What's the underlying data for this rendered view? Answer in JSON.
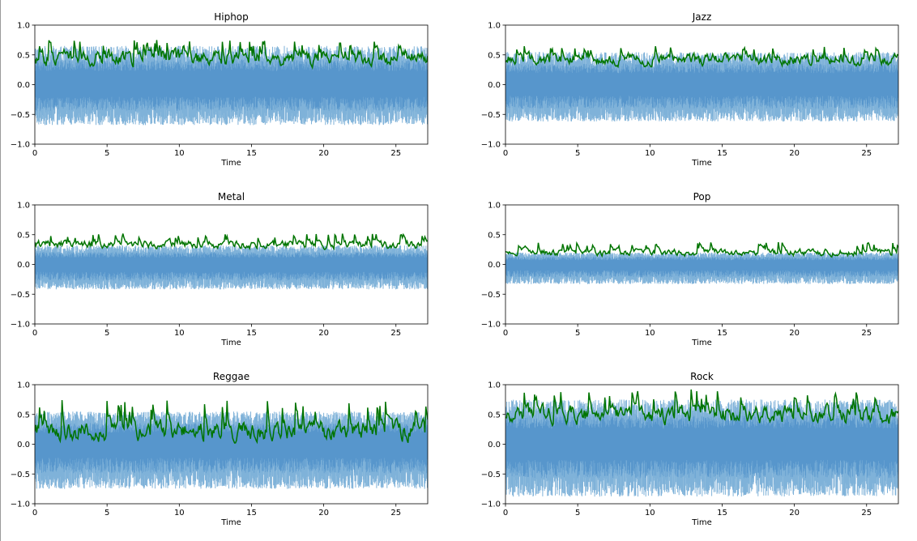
{
  "figure": {
    "colors": {
      "waveform": "#7fb2d9",
      "waveform_core": "#4a8cc7",
      "envelope": "#007400",
      "axes": "#000000",
      "background": "#ffffff"
    }
  },
  "chart_data": [
    {
      "type": "line",
      "title": "Hiphop",
      "xlabel": "Time",
      "ylabel": "",
      "xlim": [
        0,
        27.2
      ],
      "ylim": [
        -1.0,
        1.0
      ],
      "x_ticks": [
        0,
        5,
        10,
        15,
        20,
        25
      ],
      "y_ticks": [
        -1.0,
        -0.5,
        0.0,
        0.5,
        1.0
      ],
      "grid": false,
      "series": [
        {
          "role": "waveform",
          "amplitude_upper": 0.65,
          "amplitude_lower": -0.68,
          "peak": 0.75
        },
        {
          "role": "envelope",
          "min": 0.12,
          "max": 0.75,
          "mean": 0.45
        }
      ]
    },
    {
      "type": "line",
      "title": "Jazz",
      "xlabel": "Time",
      "ylabel": "",
      "xlim": [
        0,
        27.2
      ],
      "ylim": [
        -1.0,
        1.0
      ],
      "x_ticks": [
        0,
        5,
        10,
        15,
        20,
        25
      ],
      "y_ticks": [
        -1.0,
        -0.5,
        0.0,
        0.5,
        1.0
      ],
      "grid": false,
      "series": [
        {
          "role": "waveform",
          "amplitude_upper": 0.55,
          "amplitude_lower": -0.62,
          "peak": 0.72
        },
        {
          "role": "envelope",
          "min": 0.22,
          "max": 0.65,
          "mean": 0.42
        }
      ]
    },
    {
      "type": "line",
      "title": "Metal",
      "xlabel": "Time",
      "ylabel": "",
      "xlim": [
        0,
        27.2
      ],
      "ylim": [
        -1.0,
        1.0
      ],
      "x_ticks": [
        0,
        5,
        10,
        15,
        20,
        25
      ],
      "y_ticks": [
        -1.0,
        -0.5,
        0.0,
        0.5,
        1.0
      ],
      "grid": false,
      "series": [
        {
          "role": "waveform",
          "amplitude_upper": 0.32,
          "amplitude_lower": -0.42,
          "peak": 0.45
        },
        {
          "role": "envelope",
          "min": 0.22,
          "max": 0.52,
          "mean": 0.33
        }
      ]
    },
    {
      "type": "line",
      "title": "Pop",
      "xlabel": "Time",
      "ylabel": "",
      "xlim": [
        0,
        27.2
      ],
      "ylim": [
        -1.0,
        1.0
      ],
      "x_ticks": [
        0,
        5,
        10,
        15,
        20,
        25
      ],
      "y_ticks": [
        -1.0,
        -0.5,
        0.0,
        0.5,
        1.0
      ],
      "grid": false,
      "series": [
        {
          "role": "waveform",
          "amplitude_upper": 0.2,
          "amplitude_lower": -0.33,
          "peak": 0.4
        },
        {
          "role": "envelope",
          "min": 0.12,
          "max": 0.38,
          "mean": 0.2
        }
      ]
    },
    {
      "type": "line",
      "title": "Reggae",
      "xlabel": "Time",
      "ylabel": "",
      "xlim": [
        0,
        27.2
      ],
      "ylim": [
        -1.0,
        1.0
      ],
      "x_ticks": [
        0,
        5,
        10,
        15,
        20,
        25
      ],
      "y_ticks": [
        -1.0,
        -0.5,
        0.0,
        0.5,
        1.0
      ],
      "grid": false,
      "series": [
        {
          "role": "waveform",
          "amplitude_upper": 0.55,
          "amplitude_lower": -0.75,
          "peak": 0.8
        },
        {
          "role": "envelope",
          "min": 0.02,
          "max": 0.75,
          "mean": 0.22
        }
      ]
    },
    {
      "type": "line",
      "title": "Rock",
      "xlabel": "Time",
      "ylabel": "",
      "xlim": [
        0,
        27.2
      ],
      "ylim": [
        -1.0,
        1.0
      ],
      "x_ticks": [
        0,
        5,
        10,
        15,
        20,
        25
      ],
      "y_ticks": [
        -1.0,
        -0.5,
        0.0,
        0.5,
        1.0
      ],
      "grid": false,
      "series": [
        {
          "role": "waveform",
          "amplitude_upper": 0.75,
          "amplitude_lower": -0.88,
          "peak": 0.92
        },
        {
          "role": "envelope",
          "min": 0.25,
          "max": 0.92,
          "mean": 0.5
        }
      ]
    }
  ]
}
